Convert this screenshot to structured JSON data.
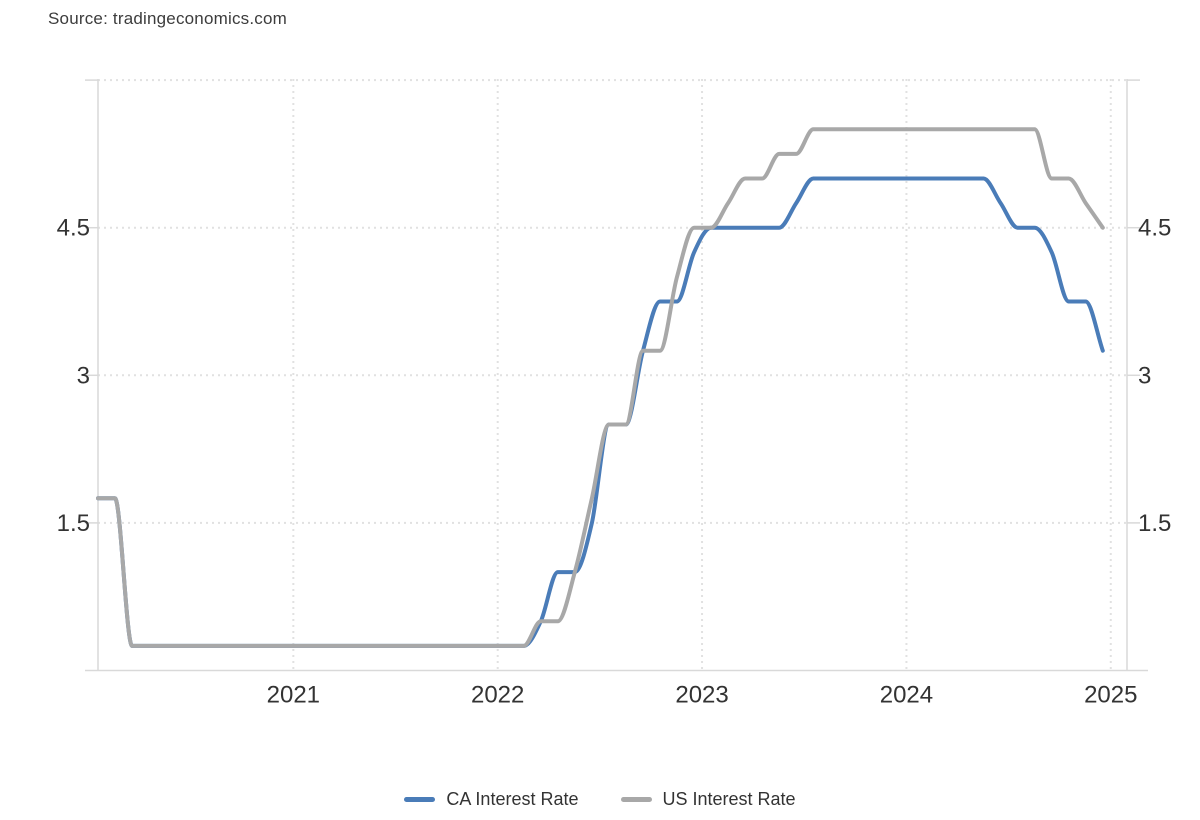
{
  "source": {
    "text": "Source: tradingeconomics.com"
  },
  "legend": {
    "items": [
      {
        "label": "CA Interest Rate",
        "color": "#4a7cb8"
      },
      {
        "label": "US Interest Rate",
        "color": "#a8a8a8"
      }
    ]
  },
  "chart_data": {
    "type": "line",
    "title": "",
    "xlabel": "",
    "ylabel": "",
    "interval": "monthly",
    "x_start": "2020-01",
    "x_end": "2024-12",
    "ylim": [
      0,
      6
    ],
    "y_gridline_values": [
      1.5,
      3,
      4.5,
      6
    ],
    "y_tick_labels": [
      "1.5",
      "3",
      "4.5"
    ],
    "y_tick_values": [
      1.5,
      3,
      4.5
    ],
    "x_year_labels": [
      "2021",
      "2022",
      "2023",
      "2024",
      "2025"
    ],
    "x_year_values": [
      2021,
      2022,
      2023,
      2024,
      2025
    ],
    "grid": "dotted",
    "legend_position": "bottom",
    "months": [
      "2020-01",
      "2020-02",
      "2020-03",
      "2020-04",
      "2020-05",
      "2020-06",
      "2020-07",
      "2020-08",
      "2020-09",
      "2020-10",
      "2020-11",
      "2020-12",
      "2021-01",
      "2021-02",
      "2021-03",
      "2021-04",
      "2021-05",
      "2021-06",
      "2021-07",
      "2021-08",
      "2021-09",
      "2021-10",
      "2021-11",
      "2021-12",
      "2022-01",
      "2022-02",
      "2022-03",
      "2022-04",
      "2022-05",
      "2022-06",
      "2022-07",
      "2022-08",
      "2022-09",
      "2022-10",
      "2022-11",
      "2022-12",
      "2023-01",
      "2023-02",
      "2023-03",
      "2023-04",
      "2023-05",
      "2023-06",
      "2023-07",
      "2023-08",
      "2023-09",
      "2023-10",
      "2023-11",
      "2023-12",
      "2024-01",
      "2024-02",
      "2024-03",
      "2024-04",
      "2024-05",
      "2024-06",
      "2024-07",
      "2024-08",
      "2024-09",
      "2024-10",
      "2024-11",
      "2024-12"
    ],
    "series": [
      {
        "name": "CA Interest Rate",
        "color": "#4a7cb8",
        "values": [
          1.75,
          1.75,
          0.25,
          0.25,
          0.25,
          0.25,
          0.25,
          0.25,
          0.25,
          0.25,
          0.25,
          0.25,
          0.25,
          0.25,
          0.25,
          0.25,
          0.25,
          0.25,
          0.25,
          0.25,
          0.25,
          0.25,
          0.25,
          0.25,
          0.25,
          0.25,
          0.5,
          1,
          1,
          1.5,
          2.5,
          2.5,
          3.25,
          3.75,
          3.75,
          4.25,
          4.5,
          4.5,
          4.5,
          4.5,
          4.5,
          4.75,
          5,
          5,
          5,
          5,
          5,
          5,
          5,
          5,
          5,
          5,
          5,
          4.75,
          4.5,
          4.5,
          4.25,
          3.75,
          3.75,
          3.25
        ]
      },
      {
        "name": "US Interest Rate",
        "color": "#a8a8a8",
        "values": [
          1.75,
          1.75,
          0.25,
          0.25,
          0.25,
          0.25,
          0.25,
          0.25,
          0.25,
          0.25,
          0.25,
          0.25,
          0.25,
          0.25,
          0.25,
          0.25,
          0.25,
          0.25,
          0.25,
          0.25,
          0.25,
          0.25,
          0.25,
          0.25,
          0.25,
          0.25,
          0.5,
          0.5,
          1,
          1.75,
          2.5,
          2.5,
          3.25,
          3.25,
          4,
          4.5,
          4.5,
          4.75,
          5,
          5,
          5.25,
          5.25,
          5.5,
          5.5,
          5.5,
          5.5,
          5.5,
          5.5,
          5.5,
          5.5,
          5.5,
          5.5,
          5.5,
          5.5,
          5.5,
          5.5,
          5,
          5,
          4.75,
          4.5
        ]
      }
    ]
  }
}
